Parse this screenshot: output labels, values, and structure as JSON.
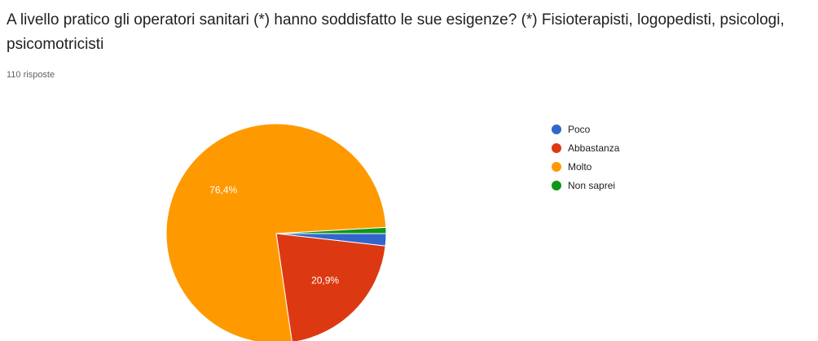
{
  "question": {
    "text": "A livello pratico gli operatori sanitari (*) hanno soddisfatto le sue esigenze?  (*) Fisioterapisti, logopedisti, psicologi, psicomotricisti",
    "response_count": "110 risposte"
  },
  "chart_data": {
    "type": "pie",
    "title": "A livello pratico gli operatori sanitari (*) hanno soddisfatto le sue esigenze?  (*) Fisioterapisti, logopedisti, psicologi, psicomotricisti",
    "start": "3 o'clock",
    "direction": "clockwise",
    "legend_position": "right",
    "slices": [
      {
        "label": "Poco",
        "percent": 1.8,
        "value_label": "",
        "color": "#3366cc"
      },
      {
        "label": "Abbastanza",
        "percent": 20.9,
        "value_label": "20,9%",
        "color": "#dc3912"
      },
      {
        "label": "Molto",
        "percent": 76.4,
        "value_label": "76,4%",
        "color": "#ff9900"
      },
      {
        "label": "Non saprei",
        "percent": 0.9,
        "value_label": "",
        "color": "#109618"
      }
    ],
    "legend_order": [
      "Poco",
      "Abbastanza",
      "Molto",
      "Non saprei"
    ]
  }
}
